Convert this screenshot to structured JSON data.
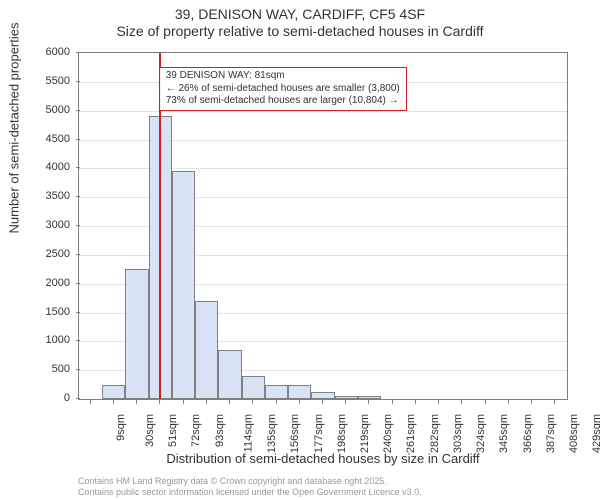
{
  "title": "39, DENISON WAY, CARDIFF, CF5 4SF",
  "subtitle": "Size of property relative to semi-detached houses in Cardiff",
  "histogram": {
    "type": "histogram",
    "categories": [
      "9sqm",
      "30sqm",
      "51sqm",
      "72sqm",
      "93sqm",
      "114sqm",
      "135sqm",
      "156sqm",
      "177sqm",
      "198sqm",
      "219sqm",
      "240sqm",
      "261sqm",
      "282sqm",
      "303sqm",
      "324sqm",
      "345sqm",
      "366sqm",
      "387sqm",
      "408sqm",
      "429sqm"
    ],
    "values": [
      0,
      250,
      2250,
      4900,
      3950,
      1700,
      850,
      400,
      250,
      250,
      120,
      60,
      60,
      0,
      0,
      0,
      0,
      0,
      0,
      0,
      0
    ],
    "bar_fill": "#d8e4f5",
    "bar_border": "#808080",
    "bar_width": 1.0,
    "ylim": [
      0,
      6000
    ],
    "ytick_step": 500,
    "grid_color": "#c8c8c8",
    "background_color": "#ffffff",
    "axis_color": "#808080",
    "x_tick_rotation": -90,
    "marker": {
      "value_sqm": 81,
      "bin_index": 3.43,
      "color": "#d02020",
      "line_width": 2
    },
    "annotation": {
      "lines": [
        "39 DENISON WAY: 81sqm",
        "← 26% of semi-detached houses are smaller (3,800)",
        "73% of semi-detached houses are larger (10,804) →"
      ],
      "border_color": "#d02020",
      "font_size": 10
    },
    "ylabel": "Number of semi-detached properties",
    "xlabel": "Distribution of semi-detached houses by size in Cardiff",
    "title_fontsize": 14,
    "label_fontsize": 13,
    "tick_fontsize": 11
  },
  "footnote": {
    "line1": "Contains HM Land Registry data © Crown copyright and database right 2025.",
    "line2": "Contains public sector information licensed under the Open Government Licence v3.0.",
    "color": "#999999",
    "font_size": 9
  }
}
